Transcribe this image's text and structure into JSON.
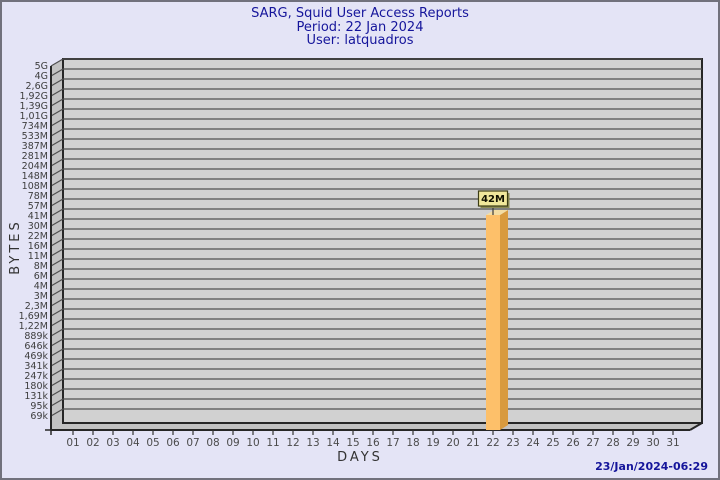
{
  "header": {
    "title": "SARG, Squid User Access Reports",
    "period": "Period: 22 Jan 2024",
    "user": "User: latquadros"
  },
  "footer": {
    "generated": "23/Jan/2024-06:29"
  },
  "chart_data": {
    "type": "bar",
    "title": "SARG, Squid User Access Reports",
    "subtitle": [
      "Period: 22 Jan 2024",
      "User: latquadros"
    ],
    "xlabel": "DAYS",
    "ylabel": "BYTES",
    "grid": "horizontal",
    "legend": "none",
    "style": "3d-bar",
    "x_categories": [
      "01",
      "02",
      "03",
      "04",
      "05",
      "06",
      "07",
      "08",
      "09",
      "10",
      "11",
      "12",
      "13",
      "14",
      "15",
      "16",
      "17",
      "18",
      "19",
      "20",
      "21",
      "22",
      "23",
      "24",
      "25",
      "26",
      "27",
      "28",
      "29",
      "30",
      "31"
    ],
    "y_tick_labels_top_to_bottom": [
      "5G",
      "4G",
      "2,6G",
      "1,92G",
      "1,39G",
      "1,01G",
      "734M",
      "533M",
      "387M",
      "281M",
      "204M",
      "148M",
      "108M",
      "78M",
      "57M",
      "41M",
      "30M",
      "22M",
      "16M",
      "11M",
      "8M",
      "6M",
      "4M",
      "3M",
      "2,3M",
      "1,69M",
      "1,22M",
      "889k",
      "646k",
      "469k",
      "341k",
      "247k",
      "180k",
      "131k",
      "95k",
      "69k"
    ],
    "bars": [
      {
        "x": "22",
        "label": "42M"
      }
    ],
    "colors": {
      "background": "#e4e4f6",
      "outer_border": "#71717c",
      "title_text": "#15159b",
      "timestamp_text": "#15159b",
      "axis_text": "#3d3d3d",
      "plot_bg": "#d1d1d1",
      "wall_bg": "#c2c2c2",
      "grid_line": "#4f4f4f",
      "frame_line": "#262626",
      "bar_front": "#fdc06a",
      "bar_side": "#d89a3e",
      "bar_top": "#f3dda4",
      "value_box_bg": "#f0e79b",
      "value_box_border": "#3c3c14",
      "value_box_shadow": "#8a8a55",
      "value_text": "#111100"
    }
  }
}
